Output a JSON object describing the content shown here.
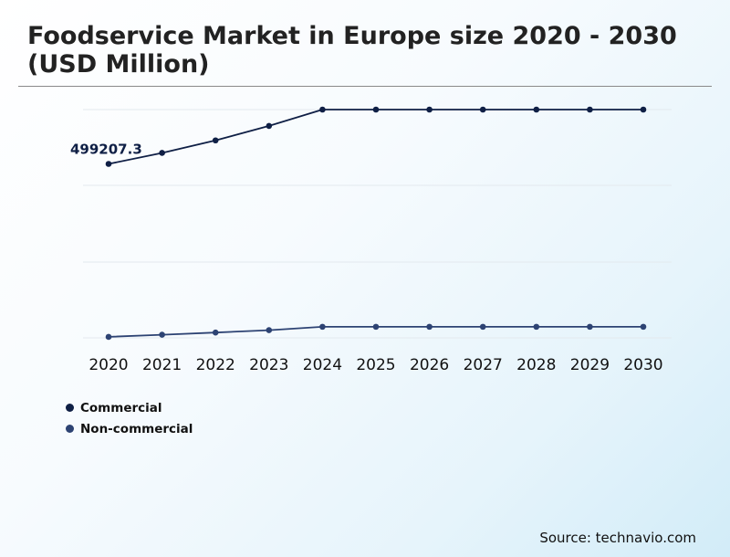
{
  "chart_data": {
    "type": "line",
    "title": "Foodservice Market in Europe size 2020 - 2030 (USD Million)",
    "x": [
      "2020",
      "2021",
      "2022",
      "2023",
      "2024",
      "2025",
      "2026",
      "2027",
      "2028",
      "2029",
      "2030"
    ],
    "series": [
      {
        "name": "Commercial",
        "color": "#0f1f45",
        "values": [
          499207.3,
          522000,
          548000,
          578000,
          612000,
          612000,
          612000,
          612000,
          612000,
          612000,
          612000
        ]
      },
      {
        "name": "Non-commercial",
        "color": "#2d4373",
        "values": [
          140000,
          144500,
          149000,
          154000,
          161000,
          161000,
          161000,
          161000,
          161000,
          161000,
          161000
        ]
      }
    ],
    "annotations": [
      {
        "series": 0,
        "index": 0,
        "label": "499207.3"
      }
    ],
    "ylim": [
      138000,
      612000
    ],
    "grid": true,
    "legend_position": "bottom-left"
  },
  "source": "Source: technavio.com"
}
